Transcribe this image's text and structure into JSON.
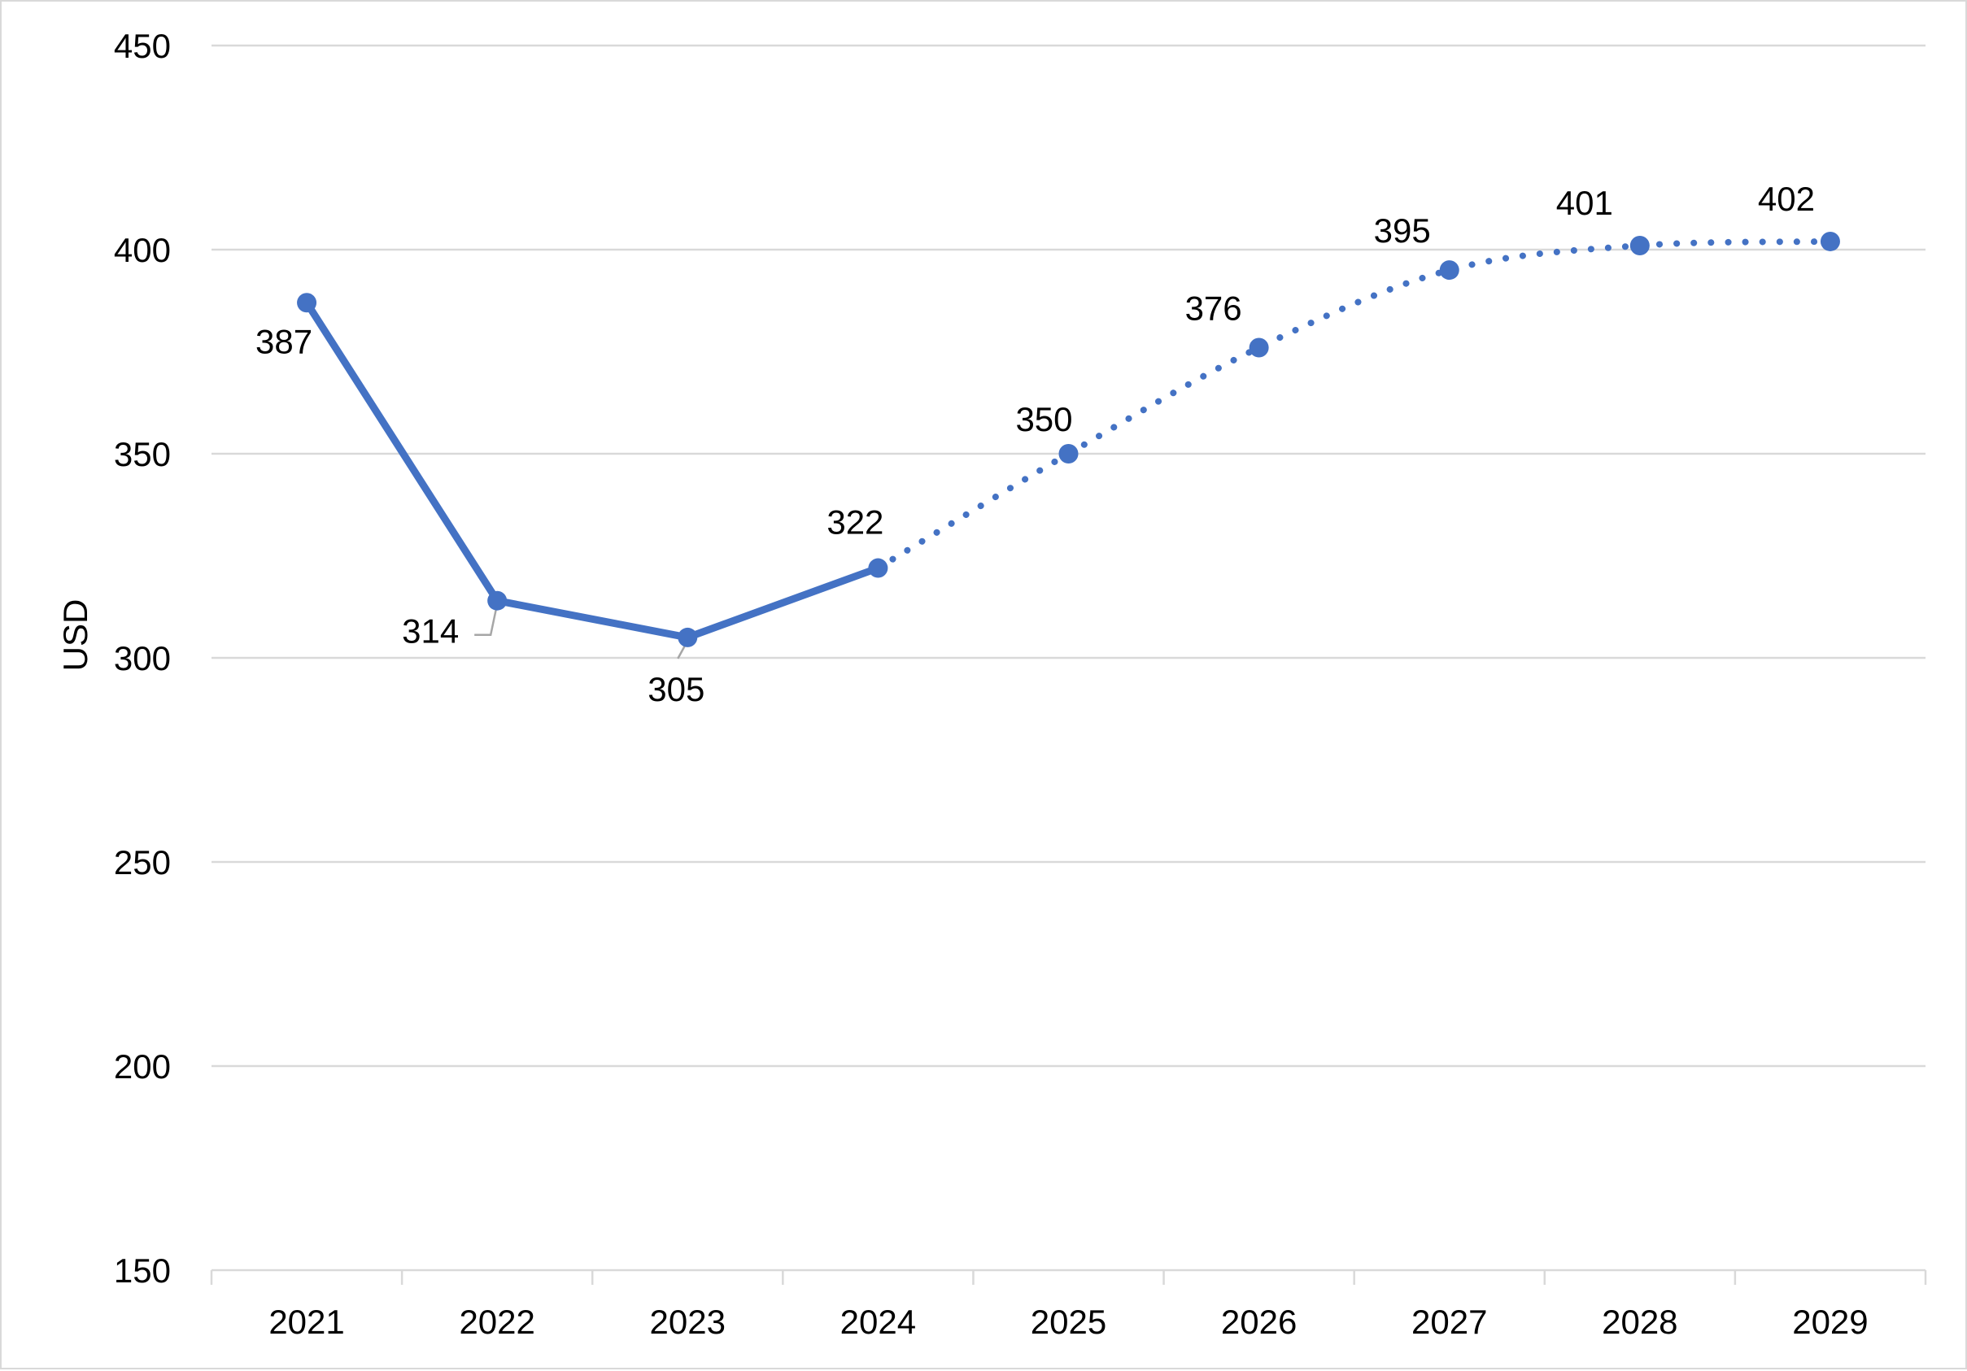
{
  "chart_data": {
    "type": "line",
    "title": "",
    "xlabel": "",
    "ylabel": "USD",
    "ylim": [
      150,
      450
    ],
    "y_ticks": [
      "150",
      "200",
      "250",
      "300",
      "350",
      "400",
      "450"
    ],
    "grid": "horizontal",
    "legend": "none",
    "categories": [
      "2021",
      "2022",
      "2023",
      "2024",
      "2025",
      "2026",
      "2027",
      "2028",
      "2029"
    ],
    "series": [
      {
        "values": [
          387,
          314,
          305,
          322,
          350,
          376,
          395,
          401,
          402
        ],
        "labels": [
          "387",
          "314",
          "305",
          "322",
          "350",
          "376",
          "395",
          "401",
          "402"
        ],
        "color": "#4472C4",
        "solid_through": "2024",
        "dotted_from": "2024"
      }
    ]
  }
}
